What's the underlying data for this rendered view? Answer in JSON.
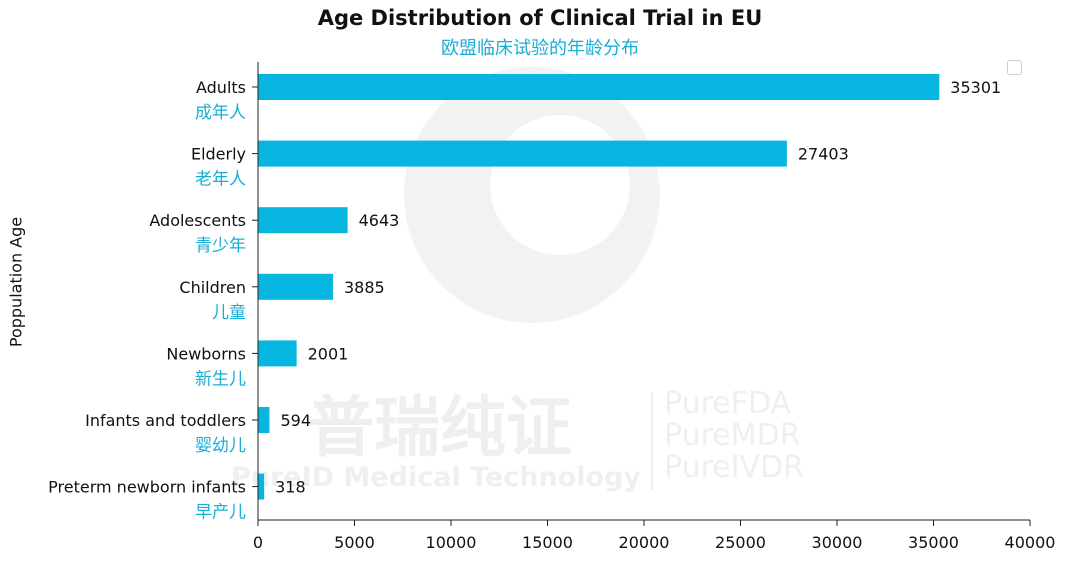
{
  "chart_data": {
    "type": "bar",
    "orientation": "horizontal",
    "title": "Age Distribution of Clinical Trial in EU",
    "subtitle": "欧盟临床试验的年龄分布",
    "ylabel": "Poppulation Age",
    "xlabel": "",
    "xlim": [
      0,
      40000
    ],
    "xticks": [
      "0",
      "5000",
      "10000",
      "15000",
      "20000",
      "25000",
      "30000",
      "35000",
      "40000"
    ],
    "categories": [
      "Adults",
      "Elderly",
      "Adolescents",
      "Children",
      "Newborns",
      "Infants and toddlers",
      "Preterm newborn infants"
    ],
    "categories_zh": [
      "成年人",
      "老年人",
      "青少年",
      "儿童",
      "新生儿",
      "婴幼儿",
      "早产儿"
    ],
    "values": [
      35301,
      27403,
      4643,
      3885,
      2001,
      594,
      318
    ],
    "bar_color": "#06b6e0",
    "secondary_label_color": "#19aed6",
    "grid": false,
    "legend": "top-right (empty)"
  },
  "watermark": {
    "brand_cn": "普瑞纯证",
    "brand_en": "PureID Medical Technology",
    "products": [
      "PureFDA",
      "PureMDR",
      "PureIVDR"
    ]
  }
}
